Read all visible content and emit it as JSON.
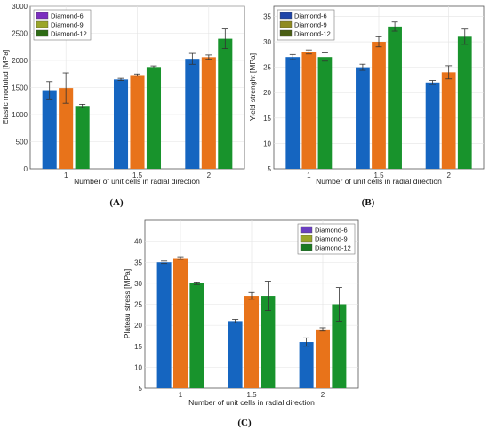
{
  "colors": {
    "diamond6": "#1565c0",
    "diamond9": "#e8731a",
    "diamond12": "#18932c",
    "grid": "#e3e3e3",
    "axis": "#555555"
  },
  "chart_data": [
    {
      "type": "bar",
      "panel": "(A)",
      "categories": [
        "1",
        "1.5",
        "2"
      ],
      "xlabel": "Number of unit cells in radial direction",
      "ylabel": "Elastic modulud [MPa]",
      "ylim": [
        0,
        3000
      ],
      "yticks": [
        "0",
        "500",
        "1000",
        "1500",
        "2000",
        "2500",
        "3000"
      ],
      "grid": true,
      "legend_position": "top-left",
      "series": [
        {
          "name": "Diamond-6",
          "legend_color": "#7b2fbf",
          "values": [
            1450,
            1650,
            2030
          ],
          "errors": [
            160,
            20,
            100
          ]
        },
        {
          "name": "Diamond-9",
          "legend_color": "#9aa62a",
          "values": [
            1490,
            1730,
            2060
          ],
          "errors": [
            280,
            20,
            40
          ]
        },
        {
          "name": "Diamond-12",
          "legend_color": "#2d6b14",
          "values": [
            1160,
            1880,
            2400
          ],
          "errors": [
            30,
            20,
            180
          ]
        }
      ]
    },
    {
      "type": "bar",
      "panel": "(B)",
      "categories": [
        "1",
        "1.5",
        "2"
      ],
      "xlabel": "Number of unit cells in radial direction",
      "ylabel": "Yield strenght [MPa]",
      "ylim": [
        5,
        37
      ],
      "yticks": [
        "5",
        "10",
        "15",
        "20",
        "25",
        "30",
        "35"
      ],
      "grid": true,
      "legend_position": "top-left",
      "series": [
        {
          "name": "Diamond-6",
          "legend_color": "#1f45a8",
          "values": [
            27,
            25,
            22
          ],
          "errors": [
            0.5,
            0.6,
            0.4
          ]
        },
        {
          "name": "Diamond-9",
          "legend_color": "#8f8a20",
          "values": [
            28,
            30,
            24
          ],
          "errors": [
            0.4,
            1.0,
            1.3
          ]
        },
        {
          "name": "Diamond-12",
          "legend_color": "#4a5e14",
          "values": [
            27,
            33,
            31
          ],
          "errors": [
            0.8,
            0.9,
            1.5
          ]
        }
      ]
    },
    {
      "type": "bar",
      "panel": "(C)",
      "categories": [
        "1",
        "1.5",
        "2"
      ],
      "xlabel": "Number of unit cells in radial direction",
      "ylabel": "Plateau stress [MPa]",
      "ylim": [
        5,
        45
      ],
      "yticks": [
        "5",
        "10",
        "15",
        "20",
        "25",
        "30",
        "35",
        "40"
      ],
      "grid": true,
      "legend_position": "top-right",
      "series": [
        {
          "name": "Diamond-6",
          "legend_color": "#6a3fc0",
          "values": [
            35,
            21,
            16
          ],
          "errors": [
            0.3,
            0.4,
            1.0
          ]
        },
        {
          "name": "Diamond-9",
          "legend_color": "#9aa62a",
          "values": [
            36,
            27,
            19
          ],
          "errors": [
            0.3,
            0.8,
            0.4
          ]
        },
        {
          "name": "Diamond-12",
          "legend_color": "#1a7a22",
          "values": [
            30,
            27,
            25
          ],
          "errors": [
            0.3,
            3.5,
            4.0
          ]
        }
      ]
    }
  ]
}
